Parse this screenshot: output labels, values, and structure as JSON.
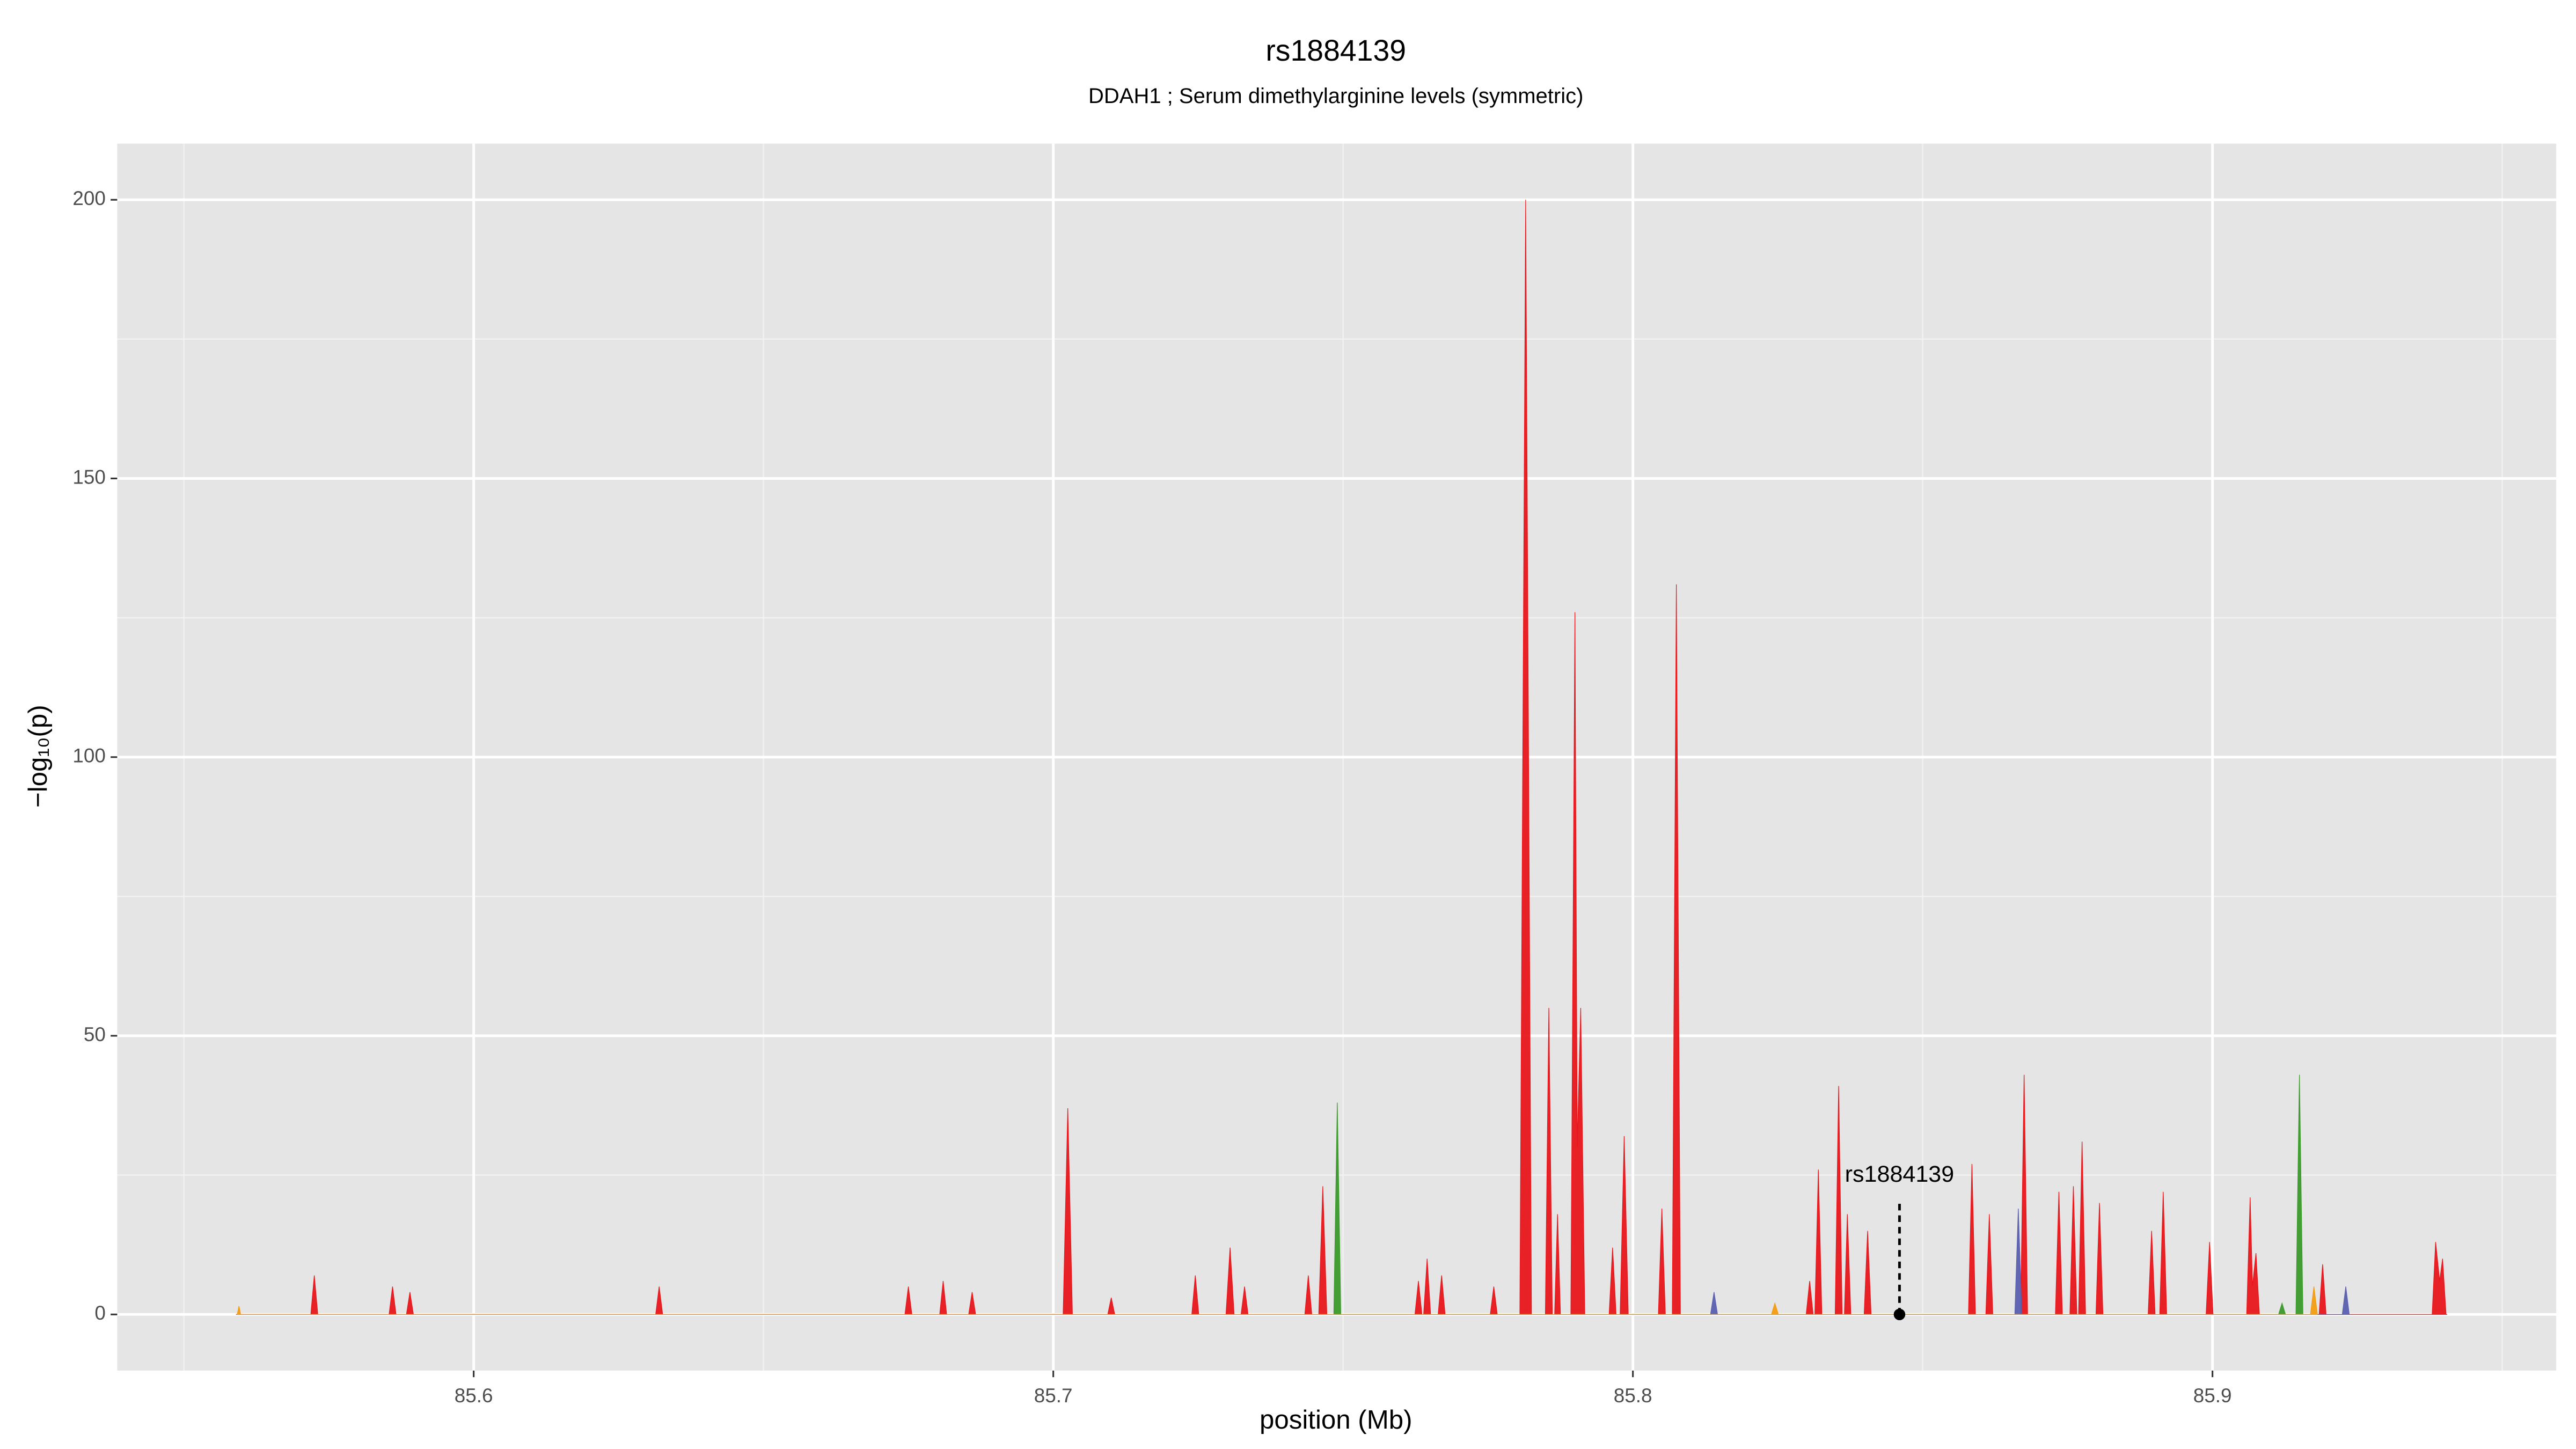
{
  "chart_data": {
    "type": "area",
    "title": "rs1884139",
    "subtitle": "DDAH1 ; Serum dimethylarginine levels (symmetric)",
    "x_label": "position (Mb)",
    "y_label": "−log₁₀(p)",
    "xlim": [
      85.5385,
      85.9593
    ],
    "ylim": [
      -10.07,
      210.07
    ],
    "xticks": [
      85.6,
      85.7,
      85.8,
      85.9
    ],
    "yticks": [
      0,
      50,
      100,
      150,
      200
    ],
    "minor_xticks": [
      85.55,
      85.65,
      85.75,
      85.85,
      85.95
    ],
    "minor_yticks": [
      25,
      75,
      125,
      175
    ],
    "grid": true,
    "background": "#e5e5e5",
    "annotation": {
      "text": "rs1884139",
      "x": 85.846,
      "y": 0
    },
    "series": [
      {
        "name": "red",
        "color": "#e8161b",
        "x": [
          85.559,
          85.5719,
          85.5725,
          85.5731,
          85.5854,
          85.586,
          85.5866,
          85.5884,
          85.589,
          85.5896,
          85.6314,
          85.632,
          85.6326,
          85.6744,
          85.675,
          85.6756,
          85.6804,
          85.681,
          85.6816,
          85.6854,
          85.686,
          85.6866,
          85.7017,
          85.7025,
          85.7033,
          85.7094,
          85.71,
          85.7106,
          85.7239,
          85.7245,
          85.7251,
          85.7298,
          85.7305,
          85.7312,
          85.7324,
          85.733,
          85.7336,
          85.7434,
          85.744,
          85.7446,
          85.7458,
          85.7465,
          85.7472,
          85.7624,
          85.763,
          85.7636,
          85.7639,
          85.7645,
          85.7651,
          85.7664,
          85.767,
          85.7676,
          85.7754,
          85.776,
          85.7766,
          85.7805,
          85.7815,
          85.7825,
          85.7849,
          85.7855,
          85.7861,
          85.7865,
          85.787,
          85.7875,
          85.7893,
          85.79,
          85.7904,
          85.791,
          85.7917,
          85.7959,
          85.7965,
          85.7971,
          85.7978,
          85.7985,
          85.7992,
          85.8044,
          85.805,
          85.8056,
          85.8068,
          85.8075,
          85.8082,
          85.8299,
          85.8305,
          85.8311,
          85.8314,
          85.832,
          85.8326,
          85.8349,
          85.8355,
          85.8361,
          85.8365,
          85.837,
          85.8376,
          85.8399,
          85.8405,
          85.8411,
          85.8579,
          85.8585,
          85.8591,
          85.8609,
          85.8615,
          85.8621,
          85.8669,
          85.8675,
          85.8681,
          85.8729,
          85.8735,
          85.8741,
          85.8754,
          85.876,
          85.8766,
          85.8769,
          85.8775,
          85.8781,
          85.8799,
          85.8805,
          85.8811,
          85.8889,
          85.8895,
          85.8901,
          85.8909,
          85.8915,
          85.8921,
          85.8989,
          85.8995,
          85.9001,
          85.9059,
          85.9065,
          85.9069,
          85.9075,
          85.9081,
          85.9184,
          85.919,
          85.9196,
          85.9379,
          85.9385,
          85.9392,
          85.9397,
          85.9403,
          85.9405
        ],
        "values": [
          0,
          0,
          7,
          0,
          0,
          5,
          0,
          0,
          4,
          0,
          0,
          5,
          0,
          0,
          5,
          0,
          0,
          6,
          0,
          0,
          4,
          0,
          0,
          37,
          0,
          0,
          3,
          0,
          0,
          7,
          0,
          0,
          12,
          0,
          0,
          5,
          0,
          0,
          7,
          0,
          0,
          23,
          0,
          0,
          6,
          0,
          0,
          10,
          0,
          0,
          7,
          0,
          0,
          5,
          0,
          0,
          200,
          0,
          0,
          55,
          0,
          0,
          18,
          0,
          0,
          126,
          30,
          55,
          0,
          0,
          12,
          0,
          0,
          32,
          0,
          0,
          19,
          0,
          0,
          131,
          0,
          0,
          6,
          0,
          0,
          26,
          0,
          0,
          41,
          0,
          0,
          18,
          0,
          0,
          15,
          0,
          0,
          27,
          0,
          0,
          18,
          0,
          0,
          43,
          0,
          0,
          22,
          0,
          0,
          23,
          0,
          0,
          31,
          0,
          0,
          20,
          0,
          0,
          15,
          0,
          0,
          22,
          0,
          0,
          13,
          0,
          0,
          21,
          5,
          11,
          0,
          0,
          9,
          0,
          0,
          13,
          6,
          10,
          0,
          0
        ]
      },
      {
        "name": "green",
        "color": "#3a9a2a",
        "x": [
          85.7484,
          85.749,
          85.7496,
          85.9114,
          85.912,
          85.9126,
          85.9144,
          85.915,
          85.9156
        ],
        "values": [
          0,
          38,
          0,
          0,
          2,
          0,
          0,
          43,
          0
        ]
      },
      {
        "name": "blue",
        "color": "#5a5fb0",
        "x": [
          85.8134,
          85.814,
          85.8146,
          85.8659,
          85.8665,
          85.8671,
          85.9224,
          85.923,
          85.9236
        ],
        "values": [
          0,
          4,
          0,
          0,
          19,
          0,
          0,
          5,
          0
        ]
      },
      {
        "name": "orange",
        "color": "#f39c12",
        "x": [
          85.5592,
          85.5595,
          85.5598,
          85.8239,
          85.8245,
          85.8251,
          85.9169,
          85.9175,
          85.9181
        ],
        "values": [
          0,
          1.5,
          0,
          0,
          2,
          0,
          0,
          5,
          0
        ]
      }
    ]
  }
}
